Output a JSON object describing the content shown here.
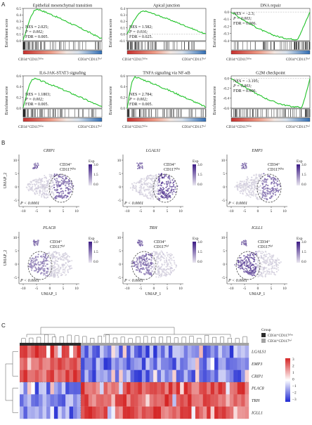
{
  "panel_letters": [
    "A",
    "B",
    "C"
  ],
  "chart_data": [
    {
      "type": "line",
      "panel": "A",
      "y_label": "Enrichment score",
      "group_low": "CD34⁺CD117ᵈⁱᵐ",
      "group_high": "CD34⁺CD117ᵇʳⁱ",
      "curve_color": "#22c32a",
      "plots": [
        {
          "title": "Epithelial mesenchymal transition",
          "nes": "NES = 2.025;",
          "p": "P = 0.002;",
          "fdr": "FDR = 0.005.",
          "ylim": [
            0,
            0.5
          ],
          "yticks": [
            "0.5",
            "0.4",
            "0.3",
            "0.2",
            "0.1",
            "0.0"
          ],
          "dir": "up",
          "peak": 0.49,
          "peak_at": 0.18,
          "end": 0.03
        },
        {
          "title": "Apical junction",
          "nes": "NES = 1.582;",
          "p": "P = 0.016;",
          "fdr": "FDR = 0.025.",
          "ylim": [
            -0.1,
            0.4
          ],
          "yticks": [
            "0.4",
            "0.3",
            "0.2",
            "0.1",
            "0.0",
            "-0.1"
          ],
          "dir": "up",
          "peak": 0.36,
          "peak_at": 0.22,
          "end": 0.0
        },
        {
          "title": "DNA repair",
          "nes": "NES = −2.3;",
          "p": "P = 0.003;",
          "fdr": "FDR = 0.006.",
          "ylim": [
            -0.4,
            0.05
          ],
          "yticks": [
            "0.0",
            "-0.1",
            "-0.2",
            "-0.3",
            "-0.4"
          ],
          "dir": "down",
          "peak": -0.38,
          "peak_at": 0.84,
          "end": 0.0
        },
        {
          "title": "IL6-JAK-STAT3 signaling",
          "nes": "NES = 1.1803;",
          "p": "P = 0.002;",
          "fdr": "FDR = 0.005.",
          "ylim": [
            0,
            0.6
          ],
          "yticks": [
            "0.6",
            "0.4",
            "0.2",
            "0.0"
          ],
          "dir": "up",
          "peak": 0.55,
          "peak_at": 0.14,
          "end": 0.02
        },
        {
          "title": "TNFA signaling via NF-κB",
          "nes": "NES = 2.784;",
          "p": "P = 0.002;",
          "fdr": "FDR = 0.005.",
          "ylim": [
            0,
            0.6
          ],
          "yticks": [
            "0.6",
            "0.4",
            "0.2",
            "0.0"
          ],
          "dir": "up",
          "peak": 0.58,
          "peak_at": 0.1,
          "end": 0.02
        },
        {
          "title": "G2M checkpoint",
          "nes": "NES = −3.195;",
          "p": "P = 0.003;",
          "fdr": "FDR = 0.006.",
          "ylim": [
            -0.6,
            0.05
          ],
          "yticks": [
            "0.0",
            "-0.2",
            "-0.4",
            "-0.6"
          ],
          "dir": "down",
          "peak": -0.58,
          "peak_at": 0.9,
          "end": 0.0
        }
      ]
    },
    {
      "type": "scatter",
      "panel": "B",
      "x_label": "UMAP_1",
      "y_label": "UMAP_2",
      "x_ticks": [
        "-10",
        "-5",
        "0",
        "5",
        "10"
      ],
      "y_ticks": [
        "10",
        "5",
        "0",
        "-5"
      ],
      "legend_title": "Exp",
      "scale_ticks": [
        "3.0",
        "1.5",
        "0.0"
      ],
      "pval": "P < 0.0001",
      "plots": [
        {
          "gene": "CRIP1",
          "label_top": "CD34⁺",
          "label_bottom": "CD117ᵈⁱᵐ",
          "region": "right",
          "intensity": 0.8
        },
        {
          "gene": "LGALS1",
          "label_top": "CD34⁺",
          "label_bottom": "CD117ᵈⁱᵐ",
          "region": "right",
          "intensity": 0.95
        },
        {
          "gene": "EMP3",
          "label_top": "CD34⁺",
          "label_bottom": "CD117ᵈⁱᵐ",
          "region": "right",
          "intensity": 0.75
        },
        {
          "gene": "PLAC8",
          "label_top": "CD34⁺",
          "label_bottom": "CD117ᵇʳⁱ",
          "region": "left",
          "intensity": 0.6
        },
        {
          "gene": "TRH",
          "label_top": "CD34⁺",
          "label_bottom": "CD117ᵇʳⁱ",
          "region": "left",
          "intensity": 0.7
        },
        {
          "gene": "IGLL1",
          "label_top": "CD34⁺",
          "label_bottom": "CD117ᵇʳⁱ",
          "region": "left",
          "intensity": 0.9
        }
      ]
    },
    {
      "type": "heatmap",
      "panel": "C",
      "genes": [
        "LGALS1",
        "EMP3",
        "CRIP1",
        "PLAC8",
        "TRH",
        "IGLL1"
      ],
      "legend_group_title": "Group",
      "groups": [
        {
          "label": "CD34⁺CD117ᵈⁱᵐ",
          "color": "#2b2b2b"
        },
        {
          "label": "CD34⁺CD117ᵇʳⁱ",
          "color": "#a3a3a3"
        }
      ],
      "scale_ticks": [
        "3",
        "2",
        "1",
        "0",
        "−1",
        "−2",
        "−3"
      ],
      "range": [
        -3,
        3
      ],
      "n_columns": 60,
      "dim_columns": 16
    }
  ]
}
